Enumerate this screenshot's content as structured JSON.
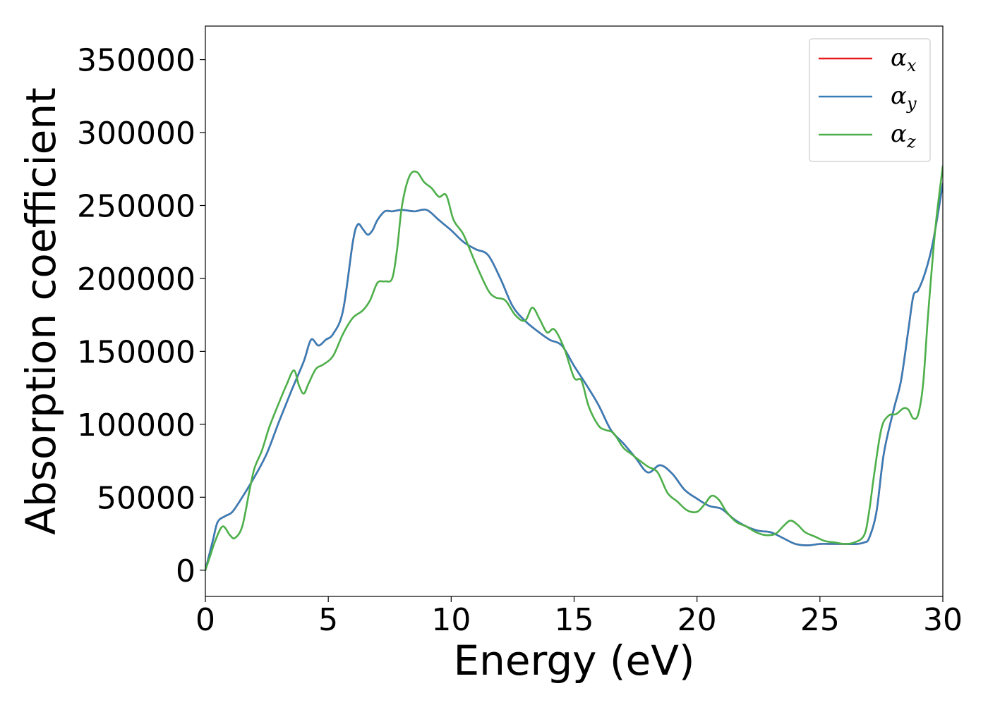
{
  "chart_data": {
    "type": "line",
    "title": "",
    "xlabel": "Energy (eV)",
    "ylabel": "Absorption coefficient",
    "xlim": [
      0,
      30
    ],
    "ylim": [
      -18000,
      373000
    ],
    "xticks": [
      0,
      5,
      10,
      15,
      20,
      25,
      30
    ],
    "yticks": [
      0,
      50000,
      100000,
      150000,
      200000,
      250000,
      300000,
      350000
    ],
    "grid": false,
    "legend_position": "top-right",
    "series": [
      {
        "name": "α",
        "subscript": "x",
        "color": "#e41a1c",
        "x": [
          0,
          0.3,
          0.5,
          0.8,
          1.1,
          1.5,
          2.0,
          2.5,
          3.0,
          3.5,
          4.0,
          4.3,
          4.6,
          4.9,
          5.2,
          5.6,
          6.0,
          6.2,
          6.4,
          6.6,
          6.8,
          7.0,
          7.3,
          7.6,
          8.0,
          8.5,
          9.0,
          9.5,
          10.0,
          10.5,
          11.0,
          11.5,
          12.0,
          12.5,
          13.0,
          13.5,
          14.0,
          14.5,
          15.0,
          15.5,
          16.0,
          16.5,
          17.0,
          17.5,
          18.0,
          18.5,
          19.0,
          19.5,
          20.0,
          20.5,
          21.0,
          21.5,
          22.0,
          22.5,
          23.0,
          23.5,
          24.0,
          24.5,
          25.0,
          25.5,
          26.0,
          26.5,
          26.8,
          27.0,
          27.3,
          27.6,
          28.0,
          28.3,
          28.6,
          28.8,
          29.0,
          29.3,
          29.6,
          30.0
        ],
        "values": [
          0,
          20000,
          33000,
          37000,
          40000,
          50000,
          64000,
          80000,
          102000,
          123000,
          143000,
          158000,
          154000,
          158000,
          162000,
          178000,
          225000,
          237000,
          234000,
          230000,
          233000,
          240000,
          246000,
          246000,
          247000,
          246000,
          247000,
          240000,
          233000,
          225000,
          220000,
          216000,
          200000,
          181000,
          171000,
          164000,
          158000,
          154000,
          140000,
          127000,
          113000,
          96000,
          87000,
          77000,
          67000,
          72000,
          66000,
          55000,
          49000,
          44000,
          42000,
          35000,
          30000,
          27000,
          26000,
          22000,
          18000,
          17000,
          18000,
          18000,
          18000,
          18000,
          19000,
          22000,
          40000,
          80000,
          110000,
          130000,
          165000,
          188000,
          192000,
          205000,
          225000,
          265000
        ]
      },
      {
        "name": "α",
        "subscript": "y",
        "color": "#377eb8",
        "x": [
          0,
          0.3,
          0.5,
          0.8,
          1.1,
          1.5,
          2.0,
          2.5,
          3.0,
          3.5,
          4.0,
          4.3,
          4.6,
          4.9,
          5.2,
          5.6,
          6.0,
          6.2,
          6.4,
          6.6,
          6.8,
          7.0,
          7.3,
          7.6,
          8.0,
          8.5,
          9.0,
          9.5,
          10.0,
          10.5,
          11.0,
          11.5,
          12.0,
          12.5,
          13.0,
          13.5,
          14.0,
          14.5,
          15.0,
          15.5,
          16.0,
          16.5,
          17.0,
          17.5,
          18.0,
          18.5,
          19.0,
          19.5,
          20.0,
          20.5,
          21.0,
          21.5,
          22.0,
          22.5,
          23.0,
          23.5,
          24.0,
          24.5,
          25.0,
          25.5,
          26.0,
          26.5,
          26.8,
          27.0,
          27.3,
          27.6,
          28.0,
          28.3,
          28.6,
          28.8,
          29.0,
          29.3,
          29.6,
          30.0
        ],
        "values": [
          0,
          20000,
          33000,
          37000,
          40000,
          50000,
          64000,
          80000,
          102000,
          123000,
          143000,
          158000,
          154000,
          158000,
          162000,
          178000,
          225000,
          237000,
          234000,
          230000,
          233000,
          240000,
          246000,
          246000,
          247000,
          246000,
          247000,
          240000,
          233000,
          225000,
          220000,
          216000,
          200000,
          181000,
          171000,
          164000,
          158000,
          154000,
          140000,
          127000,
          113000,
          96000,
          87000,
          77000,
          67000,
          72000,
          66000,
          55000,
          49000,
          44000,
          42000,
          35000,
          30000,
          27000,
          26000,
          22000,
          18000,
          17000,
          18000,
          18000,
          18000,
          18000,
          19000,
          22000,
          40000,
          80000,
          110000,
          130000,
          165000,
          188000,
          192000,
          205000,
          225000,
          265000
        ]
      },
      {
        "name": "α",
        "subscript": "z",
        "color": "#4daf4a",
        "x": [
          0,
          0.2,
          0.4,
          0.7,
          1.0,
          1.2,
          1.5,
          1.8,
          2.0,
          2.3,
          2.6,
          3.0,
          3.3,
          3.6,
          3.8,
          4.0,
          4.2,
          4.5,
          4.8,
          5.2,
          5.6,
          6.0,
          6.4,
          6.7,
          7.0,
          7.3,
          7.6,
          7.8,
          8.0,
          8.3,
          8.6,
          8.9,
          9.2,
          9.5,
          9.8,
          10.1,
          10.5,
          11.0,
          11.5,
          11.8,
          12.2,
          12.6,
          13.0,
          13.3,
          13.6,
          13.9,
          14.2,
          14.6,
          15.0,
          15.3,
          15.6,
          16.0,
          16.3,
          16.6,
          17.0,
          17.3,
          17.6,
          18.0,
          18.4,
          18.8,
          19.2,
          19.6,
          20.0,
          20.3,
          20.6,
          20.9,
          21.2,
          21.6,
          22.0,
          22.4,
          22.8,
          23.2,
          23.5,
          23.8,
          24.1,
          24.4,
          24.8,
          25.2,
          25.6,
          26.0,
          26.4,
          26.8,
          27.0,
          27.2,
          27.5,
          27.8,
          28.1,
          28.4,
          28.6,
          28.8,
          29.0,
          29.2,
          29.4,
          29.7,
          30.0
        ],
        "values": [
          0,
          10000,
          20000,
          30000,
          24000,
          22000,
          30000,
          55000,
          70000,
          82000,
          98000,
          115000,
          127000,
          137000,
          127000,
          121000,
          128000,
          138000,
          141000,
          147000,
          162000,
          173000,
          178000,
          185000,
          197000,
          198000,
          200000,
          220000,
          250000,
          270000,
          273000,
          266000,
          262000,
          256000,
          257000,
          240000,
          230000,
          210000,
          192000,
          187000,
          185000,
          175000,
          171000,
          180000,
          172000,
          163000,
          165000,
          152000,
          132000,
          130000,
          112000,
          99000,
          96000,
          94000,
          84000,
          80000,
          76000,
          71000,
          67000,
          53000,
          47000,
          41000,
          40000,
          45000,
          51000,
          48000,
          40000,
          33000,
          30000,
          26000,
          24000,
          25000,
          30000,
          34000,
          31000,
          26000,
          23000,
          20000,
          19000,
          18000,
          19000,
          24000,
          40000,
          65000,
          97000,
          106000,
          107000,
          111000,
          110000,
          104000,
          107000,
          128000,
          175000,
          235000,
          277000
        ]
      }
    ]
  }
}
